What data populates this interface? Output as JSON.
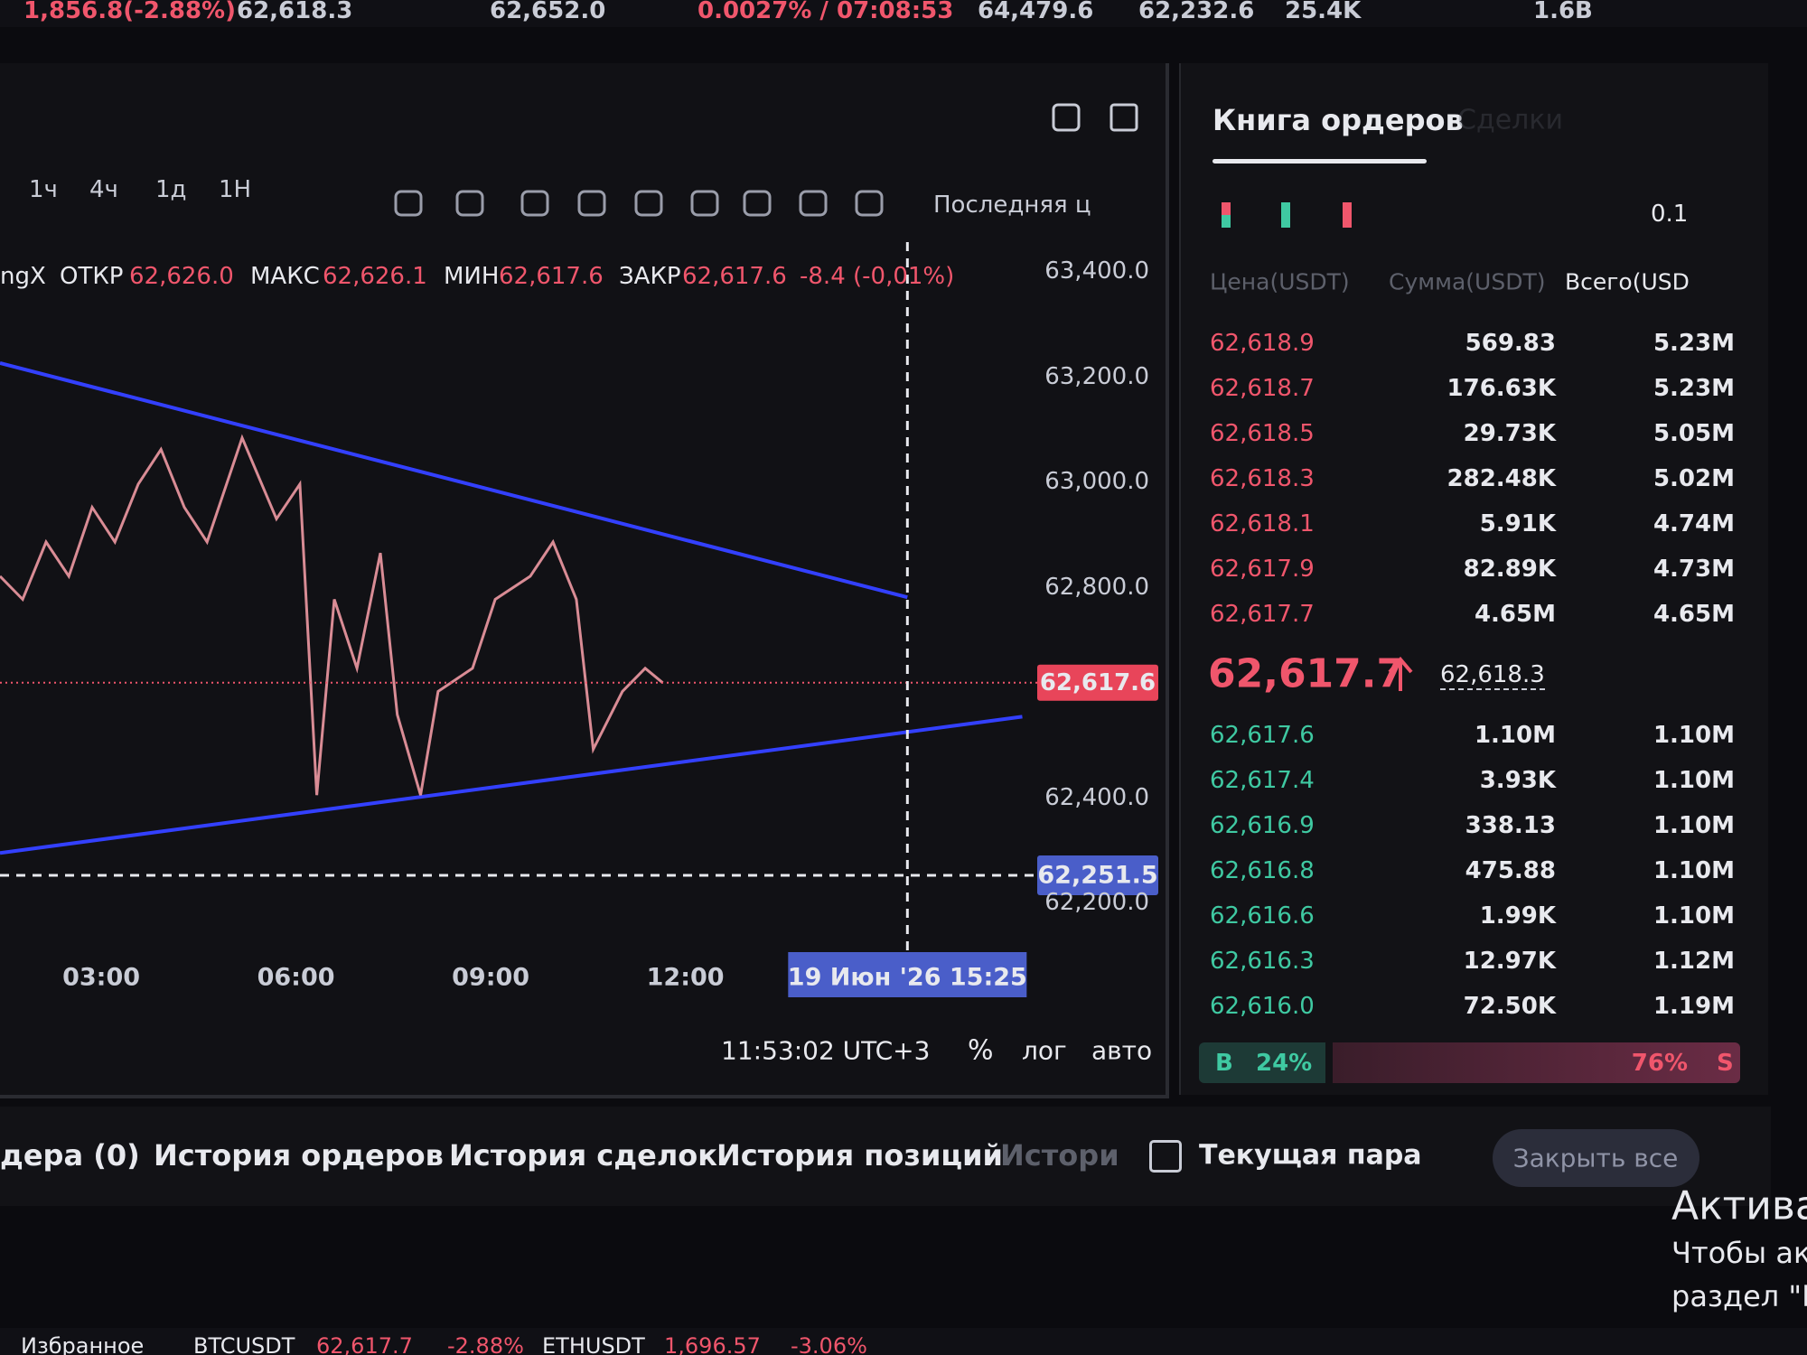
{
  "ticker_bar": {
    "items": [
      "1,856.8(-2.88%)",
      "62,618.3",
      "62,652.0",
      "0.0027% / 07:08:53",
      "64,479.6",
      "62,232.6",
      "25.4K",
      "1.6B"
    ]
  },
  "chart_toolbar": {
    "intervals": [
      "1ч",
      "4ч",
      "1д",
      "1Н"
    ],
    "price_type": "Последняя ц"
  },
  "ohlc": {
    "symbol": "ngX",
    "open_label": "ОТКР",
    "open": "62,626.0",
    "high_label": "МАКС",
    "high": "62,626.1",
    "low_label": "МИН",
    "low": "62,617.6",
    "close_label": "ЗАКР",
    "close": "62,617.6",
    "change": "-8.4 (-0,01%)"
  },
  "chart_data": {
    "type": "line",
    "x": [
      1.44,
      1.79,
      2.15,
      2.5,
      2.86,
      3.21,
      3.57,
      3.92,
      4.28,
      4.63,
      5.17,
      5.7,
      6.06,
      6.32,
      6.59,
      6.94,
      7.3,
      7.56,
      7.92,
      8.19,
      8.72,
      9.07,
      9.61,
      9.96,
      10.32,
      10.58,
      11.03,
      11.38,
      11.65
    ],
    "values": [
      62820,
      62776,
      62885,
      62820,
      62951,
      62885,
      62995,
      63061,
      62951,
      62885,
      63083,
      62929,
      62995,
      62404,
      62776,
      62645,
      62864,
      62557,
      62404,
      62601,
      62645,
      62776,
      62820,
      62885,
      62776,
      62491,
      62601,
      62645,
      62617.6
    ],
    "color": "#d98c95",
    "xlim": [
      1.44,
      17.42
    ],
    "ylim": [
      62109,
      63455
    ],
    "xticks": [
      {
        "value": 3,
        "label": "03:00"
      },
      {
        "value": 6,
        "label": "06:00"
      },
      {
        "value": 9,
        "label": "09:00"
      },
      {
        "value": 12,
        "label": "12:00"
      }
    ],
    "yticks": [
      {
        "value": 63400,
        "label": "63,400.0"
      },
      {
        "value": 63200,
        "label": "63,200.0"
      },
      {
        "value": 63000,
        "label": "63,000.0"
      },
      {
        "value": 62800,
        "label": "62,800.0"
      },
      {
        "value": 62400,
        "label": "62,400.0"
      },
      {
        "value": 62200,
        "label": "62,200.0"
      }
    ],
    "last_price": {
      "value": 62617.6,
      "label": "62,617.6"
    },
    "crosshair": {
      "x": 15.42,
      "x_label": "19 Июн '26 15:25",
      "y": 62251.5,
      "y_label": "62,251.5"
    },
    "trendlines": [
      {
        "x": [
          1.44,
          15.42
        ],
        "values": [
          63225,
          62780
        ],
        "color": "#3340ff"
      },
      {
        "x": [
          1.44,
          17.19
        ],
        "values": [
          62294,
          62553
        ],
        "color": "#3340ff"
      }
    ]
  },
  "chart_footer": {
    "time": "11:53:02 UTC+3",
    "percent": "%",
    "log": "лог",
    "auto": "авто"
  },
  "order_book": {
    "title": "Книга ордеров",
    "tab2": "Сделки",
    "precision": "0.1",
    "columns": [
      "Цена(USDT)",
      "Сумма(USDT)",
      "Всего(USD"
    ],
    "asks": [
      [
        "62,618.9",
        "569.83",
        "5.23M"
      ],
      [
        "62,618.7",
        "176.63K",
        "5.23M"
      ],
      [
        "62,618.5",
        "29.73K",
        "5.05M"
      ],
      [
        "62,618.3",
        "282.48K",
        "5.02M"
      ],
      [
        "62,618.1",
        "5.91K",
        "4.74M"
      ],
      [
        "62,617.9",
        "82.89K",
        "4.73M"
      ],
      [
        "62,617.7",
        "4.65M",
        "4.65M"
      ]
    ],
    "mid_price": "62,617.7",
    "mark_price": "62,618.3",
    "bids": [
      [
        "62,617.6",
        "1.10M",
        "1.10M"
      ],
      [
        "62,617.4",
        "3.93K",
        "1.10M"
      ],
      [
        "62,616.9",
        "338.13",
        "1.10M"
      ],
      [
        "62,616.8",
        "475.88",
        "1.10M"
      ],
      [
        "62,616.6",
        "1.99K",
        "1.10M"
      ],
      [
        "62,616.3",
        "12.97K",
        "1.12M"
      ],
      [
        "62,616.0",
        "72.50K",
        "1.19M"
      ]
    ],
    "buy_label": "B",
    "buy": "24%",
    "sell": "76%",
    "sell_label": "S"
  },
  "bottom_tabs": {
    "tabs": [
      "дера (0)",
      "История ордеров",
      "История сделок",
      "История позиций",
      "Истори"
    ],
    "current_pair": "Текущая пара",
    "close_all": "Закрыть все"
  },
  "activation": [
    "Актива",
    "Чтобы ак",
    "раздел \"П"
  ],
  "bottom_bar": {
    "favorites": "Избранное",
    "items": [
      [
        "BTCUSDT",
        "62,617.7",
        "-2.88%"
      ],
      [
        "ETHUSDT",
        "1,696.57",
        "-3.06%"
      ]
    ]
  }
}
